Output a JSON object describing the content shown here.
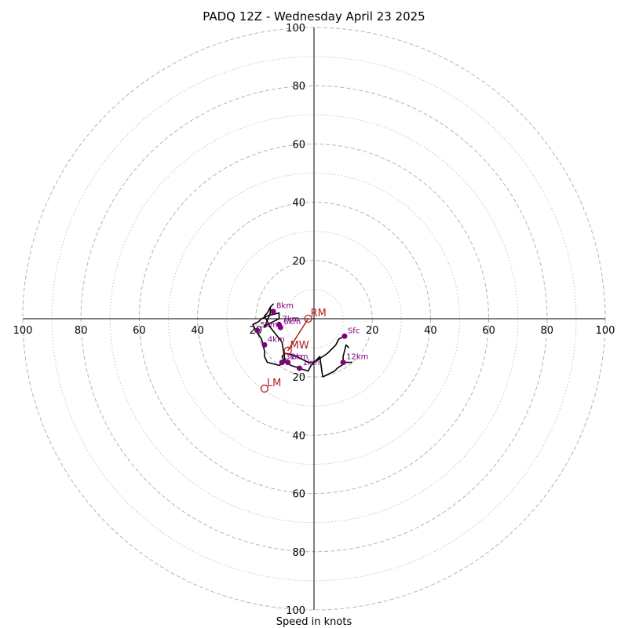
{
  "chart_data": {
    "type": "scatter",
    "subtype": "hodograph",
    "title": "PADQ 12Z - Wednesday April 23 2025",
    "xlabel": "Speed in knots",
    "xlim": [
      -100,
      100
    ],
    "ylim": [
      -100,
      100
    ],
    "ring_labels": [
      "100",
      "80",
      "60",
      "40",
      "20",
      "20",
      "40",
      "60",
      "80",
      "100"
    ],
    "rings_dashed": [
      20,
      40,
      60,
      80,
      100
    ],
    "rings_dotted": [
      10,
      30,
      50,
      70,
      90
    ],
    "grid": true,
    "colors": {
      "trace": "#000000",
      "height_marker": "#800080",
      "motion": "#b22222",
      "ring": "#b4b4b4",
      "axis": "#000000"
    },
    "hodograph": {
      "u": [
        10.5,
        8.5,
        7.5,
        4.5,
        1.5,
        0,
        -2,
        -4,
        -6,
        -9,
        -10,
        -11,
        -10,
        -12,
        -16,
        -17,
        -17,
        -18,
        -20,
        -21,
        -19,
        -18,
        -16,
        -12,
        -12,
        -14,
        -16,
        -17,
        -15,
        -15,
        -14,
        -15,
        -16,
        -17,
        -16,
        -15,
        -11,
        -10,
        -8,
        -5,
        -2,
        -1,
        2,
        3,
        5,
        7,
        8,
        11,
        13,
        10,
        10,
        11,
        12
      ],
      "v": [
        -6,
        -7,
        -9,
        -12,
        -14,
        -15,
        -15,
        -14,
        -13,
        -12,
        -12,
        -13,
        -15,
        -16,
        -15,
        -13,
        -11,
        -7,
        -4,
        -2,
        -1,
        0,
        1,
        2,
        0,
        -1,
        -2,
        -3,
        2,
        4,
        5,
        4,
        2,
        1,
        -1,
        -3,
        -8,
        -14,
        -16,
        -17,
        -18,
        -16,
        -13,
        -20,
        -19,
        -18,
        -17,
        -15,
        -15,
        -15,
        -13,
        -9,
        -10
      ]
    },
    "height_markers": [
      {
        "label": "Sfc",
        "u": 10.5,
        "v": -6
      },
      {
        "label": "1km",
        "u": -5,
        "v": -17
      },
      {
        "label": "2km",
        "u": -9,
        "v": -15
      },
      {
        "label": "3km",
        "u": -11,
        "v": -15
      },
      {
        "label": "4km",
        "u": -17,
        "v": -9
      },
      {
        "label": "5km",
        "u": -19.5,
        "v": -4
      },
      {
        "label": "6km",
        "u": -11.5,
        "v": -3
      },
      {
        "label": "7km",
        "u": -12,
        "v": -2
      },
      {
        "label": "8km",
        "u": -14,
        "v": 2.5
      },
      {
        "label": "12km",
        "u": 10,
        "v": -15
      }
    ],
    "storm_motion": [
      {
        "label": "RM",
        "u": -2,
        "v": 0
      },
      {
        "label": "MW",
        "u": -9,
        "v": -11
      },
      {
        "label": "LM",
        "u": -17,
        "v": -24
      }
    ]
  }
}
